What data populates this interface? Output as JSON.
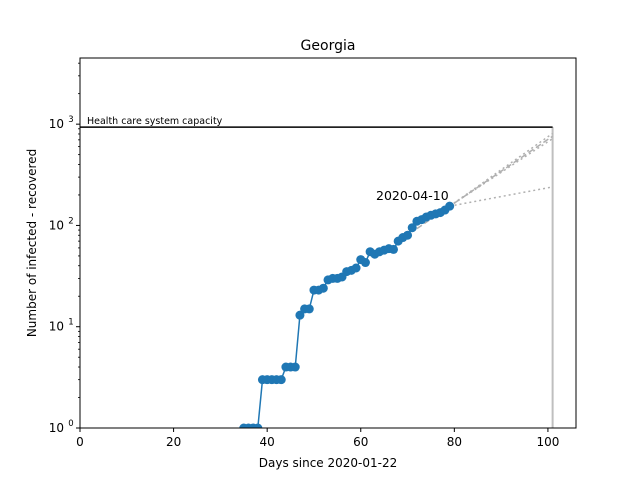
{
  "chart_data": {
    "type": "line",
    "title": "Georgia",
    "xlabel": "Days since 2020-01-22",
    "ylabel": "Number of infected - recovered",
    "xlim": [
      0,
      106
    ],
    "ylim": [
      1,
      4500
    ],
    "yscale": "log",
    "grid": false,
    "x_ticks": [
      0,
      20,
      40,
      60,
      80,
      100
    ],
    "x_tick_labels": [
      "0",
      "20",
      "40",
      "60",
      "80",
      "100"
    ],
    "y_ticks": [
      1,
      10,
      100,
      1000
    ],
    "y_tick_labels": [
      "10",
      "10",
      "10",
      "10"
    ],
    "y_tick_exponents": [
      "0",
      "1",
      "2",
      "3"
    ],
    "series": [
      {
        "color": "#1f77b4",
        "x": [
          35,
          36,
          37,
          38,
          39,
          40,
          41,
          42,
          43,
          44,
          45,
          46,
          47,
          48,
          49,
          50,
          51,
          52,
          53,
          54,
          55,
          56,
          57,
          58,
          59,
          60,
          61,
          62,
          63,
          64,
          65,
          66,
          67,
          68,
          69,
          70,
          71,
          72,
          73,
          74,
          75,
          76,
          77,
          78,
          79
        ],
        "y": [
          1,
          1,
          1,
          1,
          3,
          3,
          3,
          3,
          3,
          4,
          4,
          4,
          13,
          15,
          15,
          23,
          23,
          24,
          29,
          30,
          30,
          31,
          35,
          36,
          38,
          46,
          43,
          55,
          52,
          55,
          57,
          59,
          58,
          70,
          76,
          80,
          95,
          110,
          114,
          121,
          126,
          130,
          134,
          142,
          155
        ]
      }
    ],
    "capacity": {
      "label": "Health care system capacity",
      "value": 935,
      "x_start": 0,
      "x_end": 101,
      "color": "#000000"
    },
    "vertical_line": {
      "x": 101,
      "color": "#bfbfbf"
    },
    "projections": [
      {
        "x": [
          72,
          101
        ],
        "y": [
          93,
          760
        ],
        "style": "dashed",
        "color": "#b0b0b0"
      },
      {
        "x": [
          79,
          101
        ],
        "y": [
          155,
          810
        ],
        "style": "dotted",
        "color": "#b0b0b0"
      },
      {
        "x": [
          79,
          101
        ],
        "y": [
          155,
          720
        ],
        "style": "dotted",
        "color": "#b0b0b0"
      },
      {
        "x": [
          79,
          101
        ],
        "y": [
          155,
          240
        ],
        "style": "dotted",
        "color": "#b0b0b0"
      }
    ],
    "annotation": {
      "text": "2020-04-10",
      "x": 79,
      "y": 155
    }
  }
}
